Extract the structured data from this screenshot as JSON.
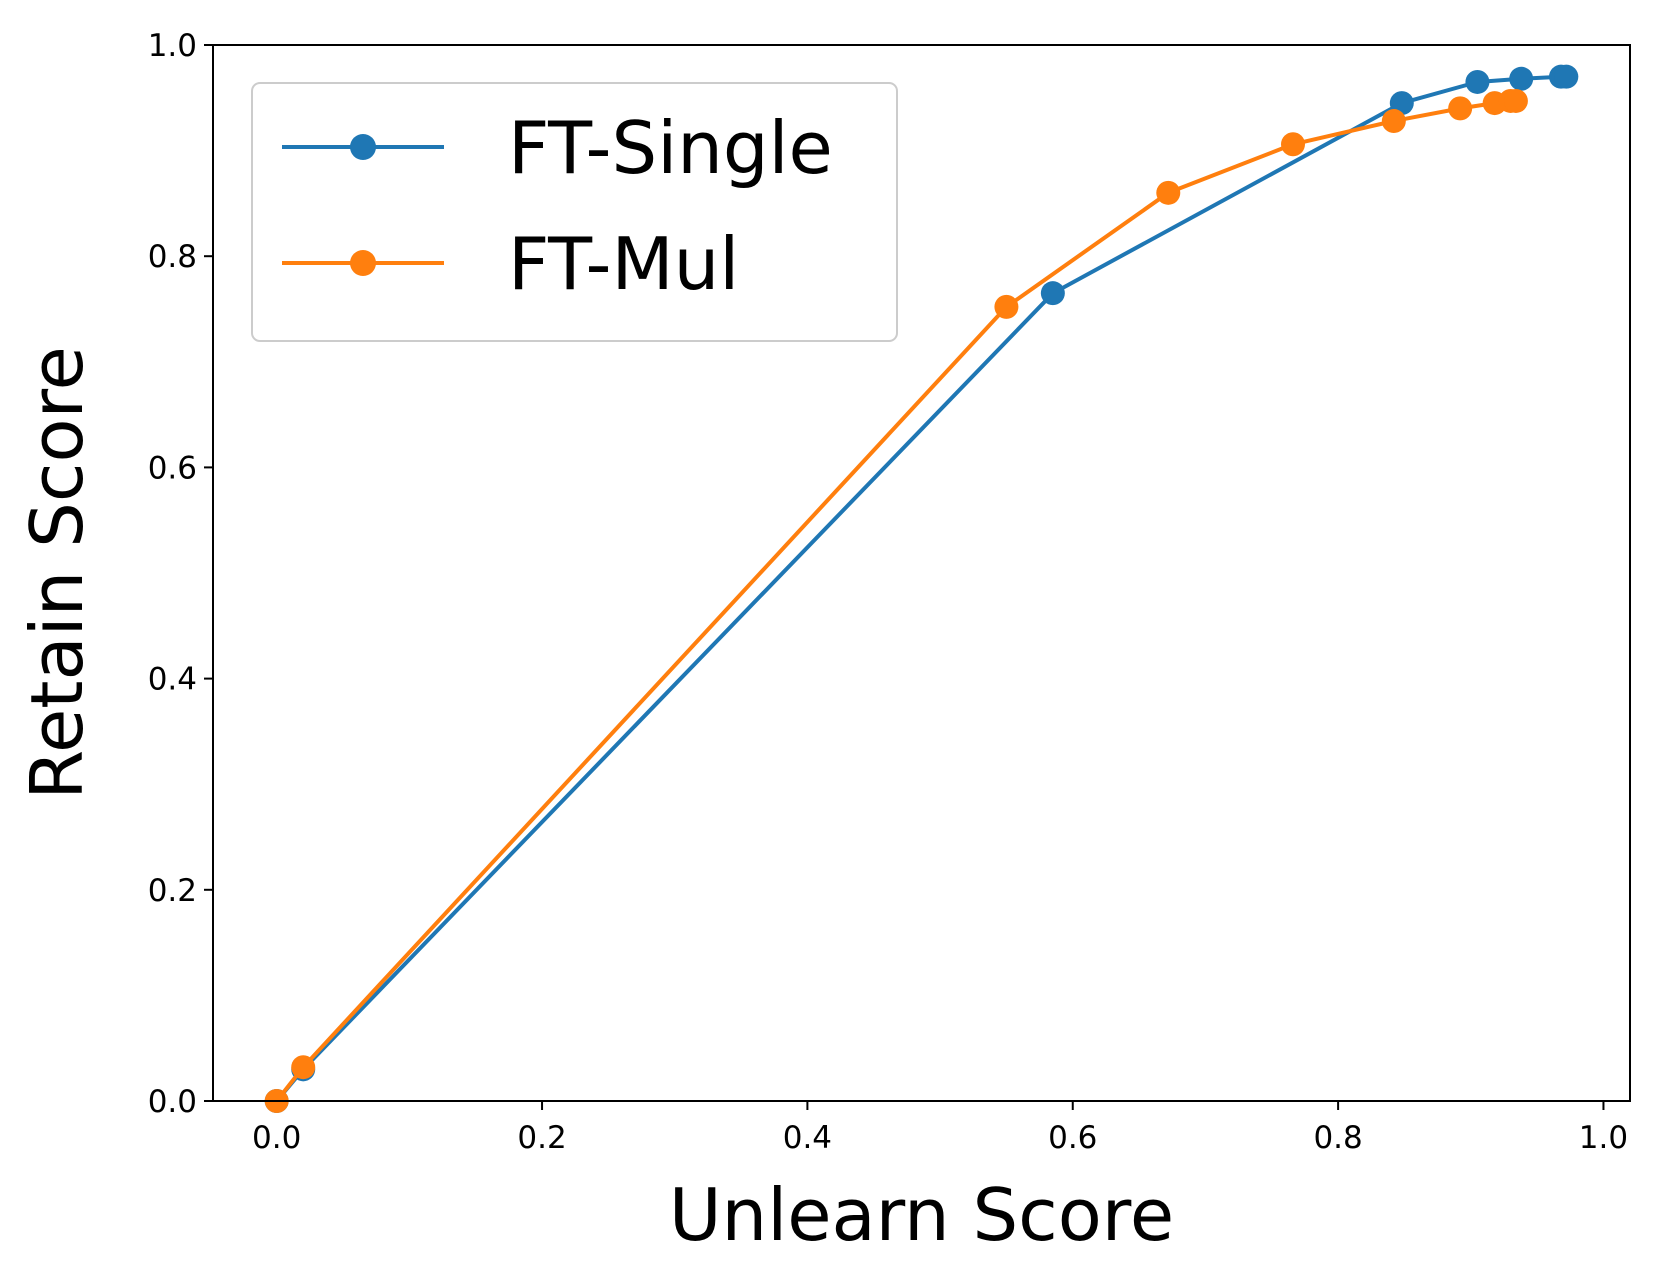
{
  "chart_data": {
    "type": "line",
    "xlabel": "Unlearn Score",
    "ylabel": "Retain Score",
    "xlim": [
      -0.048,
      1.02
    ],
    "ylim": [
      0.0,
      1.0
    ],
    "xticks": [
      "0.0",
      "0.2",
      "0.4",
      "0.6",
      "0.8",
      "1.0"
    ],
    "yticks": [
      "0.0",
      "0.2",
      "0.4",
      "0.6",
      "0.8",
      "1.0"
    ],
    "legend_position": "top-left",
    "grid": false,
    "series": [
      {
        "name": "FT-Single",
        "color": "#1f77b4",
        "marker": "circle",
        "x": [
          0.0,
          0.02,
          0.585,
          0.848,
          0.905,
          0.938,
          0.968,
          0.972
        ],
        "y": [
          0.0,
          0.03,
          0.765,
          0.945,
          0.965,
          0.968,
          0.97,
          0.97
        ]
      },
      {
        "name": "FT-Mul",
        "color": "#ff7f0e",
        "marker": "circle",
        "x": [
          0.0,
          0.02,
          0.55,
          0.672,
          0.766,
          0.842,
          0.892,
          0.918,
          0.93,
          0.934
        ],
        "y": [
          0.0,
          0.032,
          0.752,
          0.86,
          0.906,
          0.928,
          0.94,
          0.945,
          0.947,
          0.947
        ]
      }
    ]
  }
}
